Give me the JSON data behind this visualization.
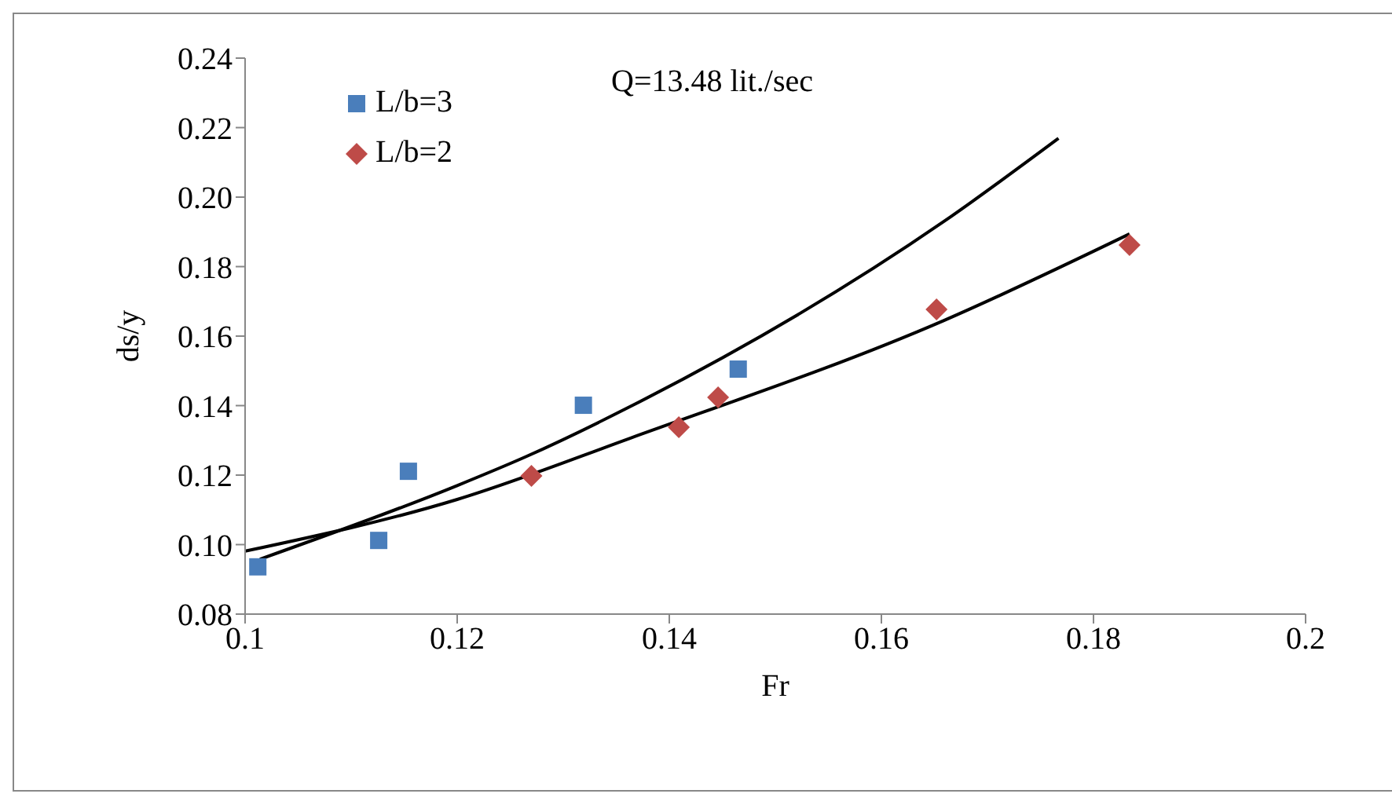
{
  "chart_data": {
    "type": "scatter",
    "xlabel": "Fr",
    "ylabel": "ds/y",
    "annotations": [
      "Q=13.48 lit./sec"
    ],
    "xlim": [
      0.1,
      0.2
    ],
    "xticks": [
      {
        "value": 0.1,
        "label": "0.1"
      },
      0.12,
      0.14,
      0.16,
      0.18,
      {
        "value": 0.2,
        "label": "0.2"
      }
    ],
    "ylim": [
      0.08,
      0.24
    ],
    "yticks": [
      {
        "value": 0.08,
        "label": "0.08"
      },
      {
        "value": 0.1,
        "label": "0.10"
      },
      0.12,
      0.14,
      0.16,
      0.18,
      {
        "value": 0.2,
        "label": "0.20"
      },
      0.22,
      0.24
    ],
    "grid": false,
    "legend": "top left",
    "series": [
      {
        "name": "L/b=3",
        "marker": "square",
        "color": "#4a7ebb",
        "x": [
          0.1012,
          0.1126,
          0.1154,
          0.1319,
          0.1465
        ],
        "values": [
          0.0936,
          0.1012,
          0.1211,
          0.1401,
          0.1505
        ]
      },
      {
        "name": "L/b=2",
        "marker": "diamond",
        "color": "#be4b48",
        "x": [
          0.127,
          0.1409,
          0.1446,
          0.1652,
          0.1834
        ],
        "values": [
          0.1198,
          0.1338,
          0.1424,
          0.1677,
          0.1862
        ]
      },
      {
        "type": "line",
        "marker": "none",
        "color": "#000000",
        "x": [
          0.1014,
          0.12,
          0.1264,
          0.1363,
          0.1659,
          0.1767
        ],
        "values": [
          0.0958,
          0.117,
          0.1252,
          0.1397,
          0.193,
          0.2169
        ]
      },
      {
        "type": "line",
        "marker": "none",
        "color": "#000000",
        "x": [
          0.1,
          0.12,
          0.1363,
          0.1659,
          0.1834
        ],
        "values": [
          0.0981,
          0.113,
          0.1306,
          0.1645,
          0.1894
        ]
      }
    ]
  }
}
